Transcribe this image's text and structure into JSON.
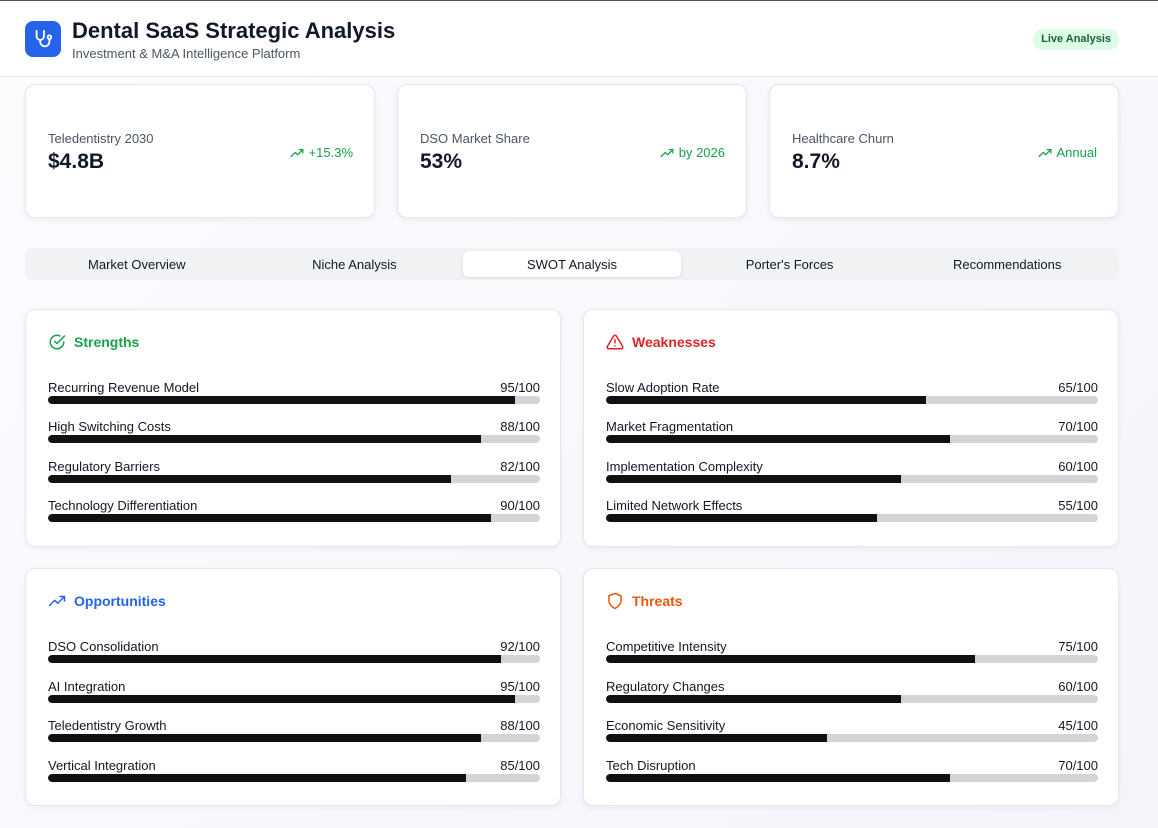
{
  "header": {
    "title": "Dental SaaS Strategic Analysis",
    "subtitle": "Investment & M&A Intelligence Platform",
    "badge": "Live Analysis",
    "logo_icon": "stethoscope-icon"
  },
  "metrics": [
    {
      "label": "Teledentistry 2030",
      "value": "$4.8B",
      "trend": "+15.3%",
      "icon": "trending-up-icon"
    },
    {
      "label": "DSO Market Share",
      "value": "53%",
      "trend": "by 2026",
      "icon": "trending-up-icon"
    },
    {
      "label": "Healthcare Churn",
      "value": "8.7%",
      "trend": "Annual",
      "icon": "trending-up-icon"
    }
  ],
  "tabs": [
    {
      "label": "Market Overview"
    },
    {
      "label": "Niche Analysis"
    },
    {
      "label": "SWOT Analysis"
    },
    {
      "label": "Porter's Forces"
    },
    {
      "label": "Recommendations"
    }
  ],
  "active_tab": "SWOT Analysis",
  "swot": {
    "strengths": {
      "title": "Strengths",
      "color": "#16a34a",
      "icon": "check-circle-icon",
      "items": [
        {
          "label": "Recurring Revenue Model",
          "score": 95,
          "score_text": "95/100"
        },
        {
          "label": "High Switching Costs",
          "score": 88,
          "score_text": "88/100"
        },
        {
          "label": "Regulatory Barriers",
          "score": 82,
          "score_text": "82/100"
        },
        {
          "label": "Technology Differentiation",
          "score": 90,
          "score_text": "90/100"
        }
      ]
    },
    "weaknesses": {
      "title": "Weaknesses",
      "color": "#dc2626",
      "icon": "alert-triangle-icon",
      "items": [
        {
          "label": "Slow Adoption Rate",
          "score": 65,
          "score_text": "65/100"
        },
        {
          "label": "Market Fragmentation",
          "score": 70,
          "score_text": "70/100"
        },
        {
          "label": "Implementation Complexity",
          "score": 60,
          "score_text": "60/100"
        },
        {
          "label": "Limited Network Effects",
          "score": 55,
          "score_text": "55/100"
        }
      ]
    },
    "opportunities": {
      "title": "Opportunities",
      "color": "#2563eb",
      "icon": "trending-up-icon",
      "items": [
        {
          "label": "DSO Consolidation",
          "score": 92,
          "score_text": "92/100"
        },
        {
          "label": "AI Integration",
          "score": 95,
          "score_text": "95/100"
        },
        {
          "label": "Teledentistry Growth",
          "score": 88,
          "score_text": "88/100"
        },
        {
          "label": "Vertical Integration",
          "score": 85,
          "score_text": "85/100"
        }
      ]
    },
    "threats": {
      "title": "Threats",
      "color": "#ea580c",
      "icon": "shield-icon",
      "items": [
        {
          "label": "Competitive Intensity",
          "score": 75,
          "score_text": "75/100"
        },
        {
          "label": "Regulatory Changes",
          "score": 60,
          "score_text": "60/100"
        },
        {
          "label": "Economic Sensitivity",
          "score": 45,
          "score_text": "45/100"
        },
        {
          "label": "Tech Disruption",
          "score": 70,
          "score_text": "70/100"
        }
      ]
    }
  },
  "colors": {
    "accent": "#2563eb",
    "trend": "#16a34a",
    "bar": "#111111",
    "track": "#d4d4d4"
  }
}
